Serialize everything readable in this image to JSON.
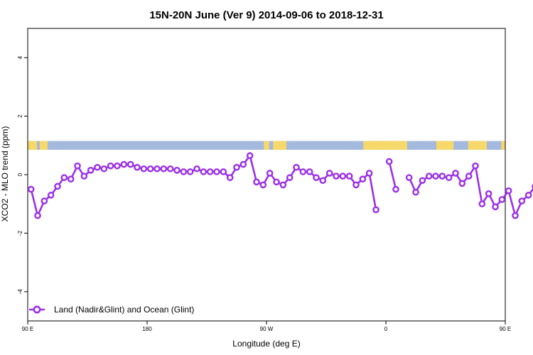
{
  "chart_data": {
    "type": "line",
    "title": "15N-20N June (Ver 9)   2014-09-06 to 2018-12-31",
    "xlabel": "Longitude (deg E)",
    "ylabel": "XCO2 - MLO trend (ppm)",
    "xlim": [
      90,
      450
    ],
    "ylim": [
      -5,
      5
    ],
    "x_ticks": [
      {
        "value": 90,
        "label": "90 E"
      },
      {
        "value": 180,
        "label": "180"
      },
      {
        "value": 270,
        "label": "90 W"
      },
      {
        "value": 360,
        "label": "0"
      },
      {
        "value": 450,
        "label": "90 E"
      },
      {
        "value": 540,
        "label": "180"
      }
    ],
    "y_ticks": [
      {
        "value": 4,
        "label": "4"
      },
      {
        "value": 2,
        "label": "2"
      },
      {
        "value": 0,
        "label": "0"
      },
      {
        "value": -2,
        "label": "-2"
      },
      {
        "value": -4,
        "label": "-4"
      }
    ],
    "grid": false,
    "legend_position": "bottom-left",
    "colors": {
      "series": "#9B30E6",
      "ocean_band": "#A3B9DD",
      "land_band": "#F7D86A"
    },
    "series": [
      {
        "name": "Land (Nadir&Glint) and Ocean (Glint)",
        "segments": [
          {
            "x": [
              92.5,
              97.5,
              102.5,
              107.5,
              112.5,
              117.5,
              122.5,
              127.5,
              132.5,
              137.5,
              142.5,
              147.5,
              152.5,
              157.5,
              162.5,
              167.5,
              172.5,
              177.5,
              182.5,
              187.5,
              192.5,
              197.5,
              202.5,
              207.5,
              212.5,
              217.5,
              222.5,
              227.5,
              232.5,
              237.5,
              242.5,
              247.5,
              252.5,
              257.5,
              262.5,
              267.5,
              272.5,
              277.5,
              282.5,
              287.5,
              292.5,
              297.5,
              302.5,
              307.5,
              312.5,
              317.5,
              322.5,
              327.5,
              332.5,
              337.5,
              342.5,
              347.5,
              352.5
            ],
            "y": [
              -0.5,
              -1.4,
              -0.9,
              -0.7,
              -0.4,
              -0.1,
              -0.15,
              0.3,
              -0.05,
              0.15,
              0.25,
              0.2,
              0.3,
              0.3,
              0.35,
              0.35,
              0.25,
              0.2,
              0.2,
              0.2,
              0.2,
              0.2,
              0.15,
              0.1,
              0.1,
              0.2,
              0.1,
              0.1,
              0.1,
              0.1,
              -0.1,
              0.25,
              0.35,
              0.65,
              -0.25,
              -0.35,
              0.05,
              -0.25,
              -0.35,
              -0.1,
              0.25,
              0.1,
              0.1,
              -0.1,
              -0.2,
              0.05,
              -0.05,
              -0.05,
              -0.05,
              -0.35,
              -0.15,
              0.05,
              -1.2
            ]
          },
          {
            "x": [
              362.5,
              367.5
            ],
            "y": [
              0.45,
              -0.5
            ]
          },
          {
            "x": [
              377.5,
              382.5,
              387.5,
              392.5,
              397.5,
              402.5,
              407.5,
              412.5,
              417.5,
              422.5,
              427.5,
              432.5,
              437.5,
              442.5,
              447.5,
              452.5,
              457.5,
              462.5,
              467.5,
              472.5,
              477.5,
              482.5,
              487.5,
              492.5,
              497.5,
              502.5,
              507.5,
              512.5,
              517.5,
              522.5,
              527.5,
              532.5,
              537.5
            ],
            "y": [
              -0.1,
              -0.6,
              -0.2,
              -0.05,
              -0.05,
              -0.05,
              -0.1,
              0.05,
              -0.3,
              -0.05,
              0.3,
              -1.0,
              -0.65,
              -1.1,
              -0.85,
              -0.55,
              -1.4,
              -0.9,
              -0.7,
              -0.4,
              -0.1,
              -0.15,
              0.3,
              -0.05,
              0.15,
              0.25,
              0.2,
              0.3,
              0.3,
              0.35,
              0.35,
              0.25,
              0.2
            ]
          }
        ]
      }
    ],
    "map_band": {
      "y_range": [
        0.85,
        1.15
      ],
      "land_x_ranges": [
        [
          90,
          97
        ],
        [
          99,
          105
        ],
        [
          268,
          272
        ],
        [
          275,
          285
        ],
        [
          343,
          376
        ],
        [
          398,
          411
        ],
        [
          422,
          436
        ],
        [
          447,
          460
        ]
      ]
    }
  }
}
